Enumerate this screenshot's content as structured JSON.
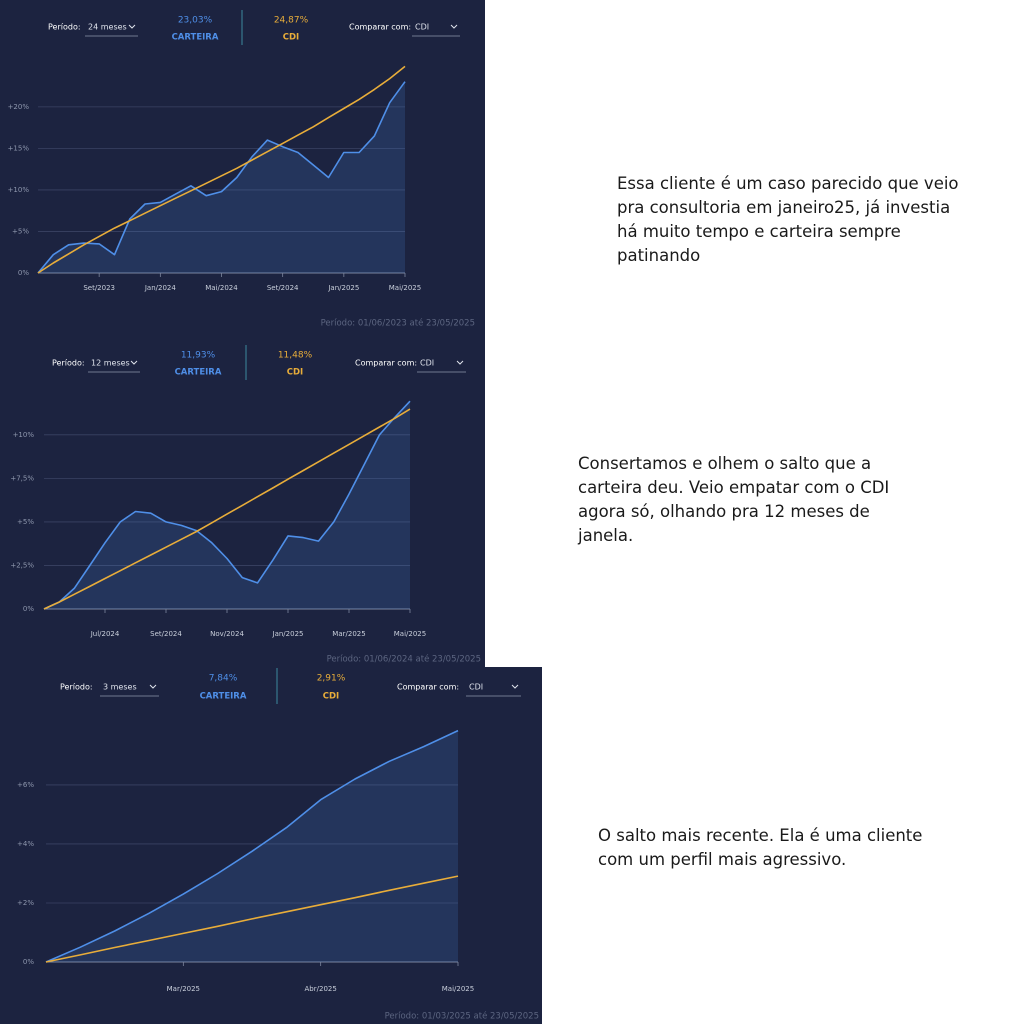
{
  "chart_data": [
    {
      "type": "line",
      "period_label": "Período:",
      "period_value": "24 meses",
      "compare_label": "Comparar com:",
      "compare_value": "CDI",
      "footer": "Período: 01/06/2023 até 23/05/2025",
      "categories": [
        null,
        null,
        null,
        null,
        "Set/2023",
        null,
        null,
        null,
        "Jan/2024",
        null,
        null,
        null,
        "Mai/2024",
        null,
        null,
        null,
        "Set/2024",
        null,
        null,
        null,
        "Jan/2025",
        null,
        null,
        null,
        "Mai/2025"
      ],
      "series": [
        {
          "name": "CARTEIRA",
          "color": "#4f8fe8",
          "area": true,
          "summary": {
            "value": 23.03,
            "label": "23,03%"
          },
          "values": [
            0,
            2.2,
            3.4,
            3.6,
            3.5,
            2.2,
            6.5,
            8.3,
            8.5,
            9.5,
            10.5,
            9.3,
            9.8,
            11.5,
            14,
            16,
            15.2,
            14.5,
            13,
            11.5,
            14.5,
            14.5,
            16.5,
            20.5,
            23.03
          ]
        },
        {
          "name": "CDI",
          "color": "#e8ad3a",
          "area": false,
          "summary": {
            "value": 24.87,
            "label": "24,87%"
          },
          "values": [
            0,
            1.2,
            2.3,
            3.4,
            4.4,
            5.4,
            6.3,
            7.2,
            8.1,
            9.0,
            9.9,
            10.8,
            11.7,
            12.6,
            13.6,
            14.6,
            15.6,
            16.6,
            17.6,
            18.7,
            19.8,
            20.9,
            22.1,
            23.4,
            24.87
          ]
        }
      ],
      "ylim": [
        0,
        26
      ],
      "yticks": [
        {
          "value": 0,
          "label": "0%"
        },
        {
          "value": 5,
          "label": "+5%"
        },
        {
          "value": 10,
          "label": "+10%"
        },
        {
          "value": 15,
          "label": "+15%"
        },
        {
          "value": 20,
          "label": "+20%"
        }
      ],
      "grid": true
    },
    {
      "type": "line",
      "period_label": "Período:",
      "period_value": "12 meses",
      "compare_label": "Comparar com:",
      "compare_value": "CDI",
      "footer": "Período: 01/06/2024 até 23/05/2025",
      "categories": [
        null,
        null,
        null,
        null,
        "Jul/2024",
        null,
        null,
        null,
        "Set/2024",
        null,
        null,
        null,
        "Nov/2024",
        null,
        null,
        null,
        "Jan/2025",
        null,
        null,
        null,
        "Mar/2025",
        null,
        null,
        null,
        "Mai/2025"
      ],
      "series": [
        {
          "name": "CARTEIRA",
          "color": "#4f8fe8",
          "area": true,
          "summary": {
            "value": 11.93,
            "label": "11,93%"
          },
          "values": [
            0,
            0.4,
            1.2,
            2.5,
            3.8,
            5.0,
            5.6,
            5.5,
            5.0,
            4.8,
            4.5,
            3.8,
            2.9,
            1.8,
            1.5,
            2.8,
            4.2,
            4.1,
            3.9,
            5.0,
            6.6,
            8.3,
            10.0,
            11.0,
            11.93
          ]
        },
        {
          "name": "CDI",
          "color": "#e8ad3a",
          "area": false,
          "summary": {
            "value": 11.48,
            "label": "11,48%"
          },
          "values": [
            0,
            0.4,
            0.85,
            1.3,
            1.75,
            2.2,
            2.65,
            3.1,
            3.55,
            4.0,
            4.45,
            4.95,
            5.45,
            5.95,
            6.45,
            6.95,
            7.45,
            7.95,
            8.45,
            8.95,
            9.45,
            9.95,
            10.45,
            10.95,
            11.48
          ]
        }
      ],
      "ylim": [
        0,
        12
      ],
      "yticks": [
        {
          "value": 0,
          "label": "0%"
        },
        {
          "value": 2.5,
          "label": "+2,5%"
        },
        {
          "value": 5,
          "label": "+5%"
        },
        {
          "value": 7.5,
          "label": "+7,5%"
        },
        {
          "value": 10,
          "label": "+10%"
        }
      ],
      "grid": true
    },
    {
      "type": "line",
      "period_label": "Período:",
      "period_value": "3 meses",
      "compare_label": "Comparar com:",
      "compare_value": "CDI",
      "footer": "Período: 01/03/2025 até 23/05/2025",
      "categories": [
        null,
        null,
        null,
        null,
        "Mar/2025",
        null,
        null,
        null,
        "Abr/2025",
        null,
        null,
        null,
        "Mai/2025"
      ],
      "series": [
        {
          "name": "CARTEIRA",
          "color": "#4f8fe8",
          "area": true,
          "summary": {
            "value": 7.84,
            "label": "7,84%"
          },
          "values": [
            0,
            0.5,
            1.05,
            1.65,
            2.3,
            3.0,
            3.75,
            4.55,
            5.5,
            6.2,
            6.8,
            7.3,
            7.84
          ]
        },
        {
          "name": "CDI",
          "color": "#e8ad3a",
          "area": false,
          "summary": {
            "value": 2.91,
            "label": "2,91%"
          },
          "values": [
            0,
            0.24,
            0.49,
            0.73,
            0.97,
            1.21,
            1.46,
            1.7,
            1.94,
            2.18,
            2.43,
            2.67,
            2.91
          ]
        }
      ],
      "ylim": [
        0,
        8.2
      ],
      "yticks": [
        {
          "value": 0,
          "label": "0%"
        },
        {
          "value": 2,
          "label": "+2%"
        },
        {
          "value": 4,
          "label": "+4%"
        },
        {
          "value": 6,
          "label": "+6%"
        }
      ],
      "grid": true
    }
  ],
  "captions": [
    "Essa cliente é um caso parecido que veio pra consultoria em janeiro25, já investia há muito tempo e carteira sempre patinando",
    "Consertamos e olhem o salto que a carteira deu. Veio empatar com o CDI agora só, olhando pra 12 meses de janela.",
    "O salto mais recente. Ela é uma cliente com um perfil mais agressivo."
  ]
}
